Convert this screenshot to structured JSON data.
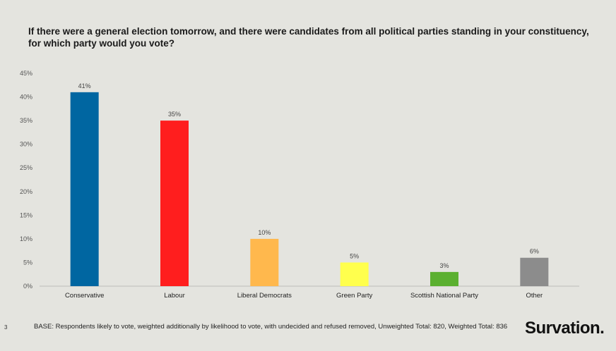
{
  "title": "If there were a general election tomorrow, and there were candidates from all political parties standing in your constituency, for which party would you vote?",
  "footer": {
    "page_number": "3",
    "base_note": "BASE: Respondents likely to vote, weighted additionally by likelihood to vote, with undecided and refused removed, Unweighted Total: 820, Weighted Total: 836",
    "logo_text": "Survation."
  },
  "chart_data": {
    "type": "bar",
    "categories": [
      "Conservative",
      "Labour",
      "Liberal Democrats",
      "Green Party",
      "Scottish National Party",
      "Other"
    ],
    "values": [
      41,
      35,
      10,
      5,
      3,
      6
    ],
    "data_labels": [
      "41%",
      "35%",
      "10%",
      "5%",
      "3%",
      "6%"
    ],
    "colors": [
      "#0066a1",
      "#ff1e1e",
      "#ffb84d",
      "#ffff4d",
      "#5bb030",
      "#8c8c8c"
    ],
    "ylim": [
      0,
      45
    ],
    "yticks": [
      0,
      5,
      10,
      15,
      20,
      25,
      30,
      35,
      40,
      45
    ],
    "ytick_labels": [
      "0%",
      "5%",
      "10%",
      "15%",
      "20%",
      "25%",
      "30%",
      "35%",
      "40%",
      "45%"
    ],
    "grid": false,
    "legend": "none"
  }
}
